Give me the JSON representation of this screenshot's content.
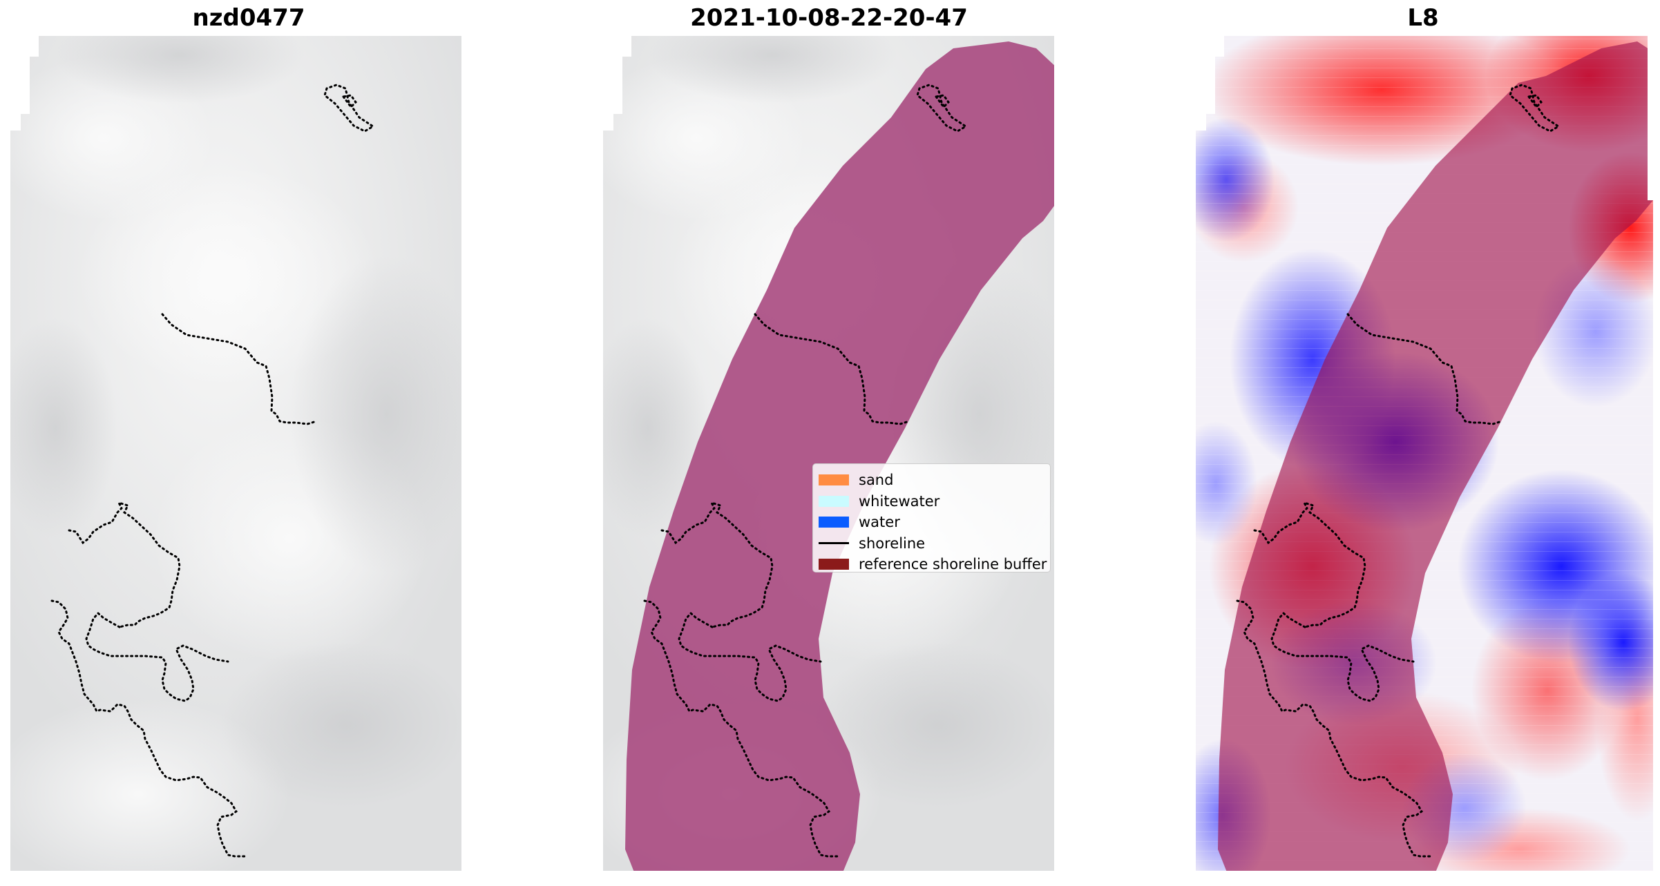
{
  "panels": [
    {
      "title": "nzd0477"
    },
    {
      "title": "2021-10-08-22-20-47"
    },
    {
      "title": "L8"
    }
  ],
  "legend": {
    "items": [
      {
        "label": "sand",
        "color": "#ff8c42"
      },
      {
        "label": "whitewater",
        "color": "#c9fbff"
      },
      {
        "label": "water",
        "color": "#0a5cff"
      },
      {
        "label": "shoreline",
        "color": "#000000",
        "line": true
      },
      {
        "label": "reference shoreline buffer",
        "color": "#8b1a1a"
      }
    ]
  },
  "colors": {
    "background": "#ffffff",
    "cloud_gray": "#e3e4e5",
    "buffer_overlay": "#a8497f",
    "diverging_red": "#ff1a1a",
    "diverging_blue": "#1a1aff",
    "shoreline": "#000000"
  }
}
